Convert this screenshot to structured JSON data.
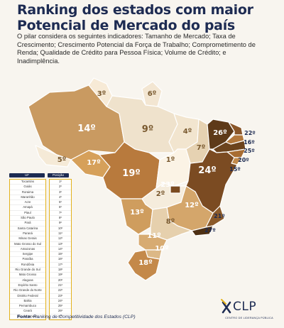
{
  "title": "Ranking dos estados com maior Potencial de Mercado do país",
  "intro": "O pilar considera os seguintes indicadores: Tamanho de Mercado; Taxa de Crescimento; Crescimento Potencial da Força de Trabalho; Comprometimento de Renda; Qualidade de Crédito para Pessoa Física; Volume de Crédito; e Inadimplência.",
  "map_labels": [
    {
      "state": "RR",
      "rank": "3º",
      "color": "#f7ead6"
    },
    {
      "state": "AP",
      "rank": "6º",
      "color": "#f3e6d2"
    },
    {
      "state": "AM",
      "rank": "14º",
      "color": "#c99a61"
    },
    {
      "state": "PA",
      "rank": "9º",
      "color": "#efe2cc"
    },
    {
      "state": "AC",
      "rank": "5º",
      "color": "#f5ead7"
    },
    {
      "state": "RO",
      "rank": "17º",
      "color": "#d6a05a"
    },
    {
      "state": "MT",
      "rank": "19º",
      "color": "#b87a3d"
    },
    {
      "state": "MA",
      "rank": "4º",
      "color": "#f2e5cf"
    },
    {
      "state": "PI",
      "rank": "7º",
      "color": "#e6d2b2"
    },
    {
      "state": "CE",
      "rank": "26º",
      "color": "#5e3a19"
    },
    {
      "state": "RN",
      "rank": "22º",
      "color": "#8a5628"
    },
    {
      "state": "PB",
      "rank": "16º",
      "color": "#b3783c"
    },
    {
      "state": "PE",
      "rank": "25º",
      "color": "#6c431d"
    },
    {
      "state": "AL",
      "rank": "20º",
      "color": "#a86d33"
    },
    {
      "state": "SE",
      "rank": "15º",
      "color": "#c28a4c"
    },
    {
      "state": "TO",
      "rank": "1º",
      "color": "#fbf3e5"
    },
    {
      "state": "BA",
      "rank": "24º",
      "color": "#7b4b22"
    },
    {
      "state": "DF",
      "rank": "23º",
      "color": "#7a4a20"
    },
    {
      "state": "GO",
      "rank": "2º",
      "color": "#f5ecdc"
    },
    {
      "state": "MG",
      "rank": "12º",
      "color": "#d4a66b"
    },
    {
      "state": "ES",
      "rank": "21º",
      "color": "#8b5a2a"
    },
    {
      "state": "RJ",
      "rank": "27º",
      "color": "#4e3014"
    },
    {
      "state": "MS",
      "rank": "13º",
      "color": "#cf9d5e"
    },
    {
      "state": "SP",
      "rank": "8º",
      "color": "#e6d0ad"
    },
    {
      "state": "PR",
      "rank": "11º",
      "color": "#d7ab72"
    },
    {
      "state": "SC",
      "rank": "10º",
      "color": "#dcb886"
    },
    {
      "state": "RS",
      "rank": "18º",
      "color": "#c4894a"
    }
  ],
  "table": {
    "col_uf": "UF",
    "col_pos": "Posição",
    "rows": [
      [
        "Tocantins",
        "1º"
      ],
      [
        "Goiás",
        "2º"
      ],
      [
        "Roraima",
        "3º"
      ],
      [
        "Maranhão",
        "4º"
      ],
      [
        "Acre",
        "5º"
      ],
      [
        "Amapá",
        "6º"
      ],
      [
        "Piauí",
        "7º"
      ],
      [
        "São Paulo",
        "8º"
      ],
      [
        "Pará",
        "9º"
      ],
      [
        "Santa Catarina",
        "10º"
      ],
      [
        "Paraná",
        "11º"
      ],
      [
        "Minas Gerais",
        "12º"
      ],
      [
        "Mato Grosso do Sul",
        "13º"
      ],
      [
        "Amazonas",
        "14º"
      ],
      [
        "Sergipe",
        "15º"
      ],
      [
        "Paraíba",
        "16º"
      ],
      [
        "Rondônia",
        "17º"
      ],
      [
        "Rio Grande do Sul",
        "18º"
      ],
      [
        "Mato Grosso",
        "19º"
      ],
      [
        "Alagoas",
        "20º"
      ],
      [
        "Espírito Santo",
        "21º"
      ],
      [
        "Rio Grande do Norte",
        "22º"
      ],
      [
        "Distrito Federal",
        "23º"
      ],
      [
        "Bahia",
        "24º"
      ],
      [
        "Pernambuco",
        "25º"
      ],
      [
        "Ceará",
        "26º"
      ],
      [
        "Rio de Janeiro",
        "27º"
      ]
    ]
  },
  "source_label": "Fonte:",
  "source_text": "Ranking de Competitividade dos Estados (CLP)",
  "logo": {
    "text": "CLP",
    "subtitle": "CENTRO DE LIDERANÇA PÚBLICA"
  },
  "colors": {
    "title": "#1d2b52",
    "accent": "#e3b21c",
    "background": "#f8f5ef"
  }
}
